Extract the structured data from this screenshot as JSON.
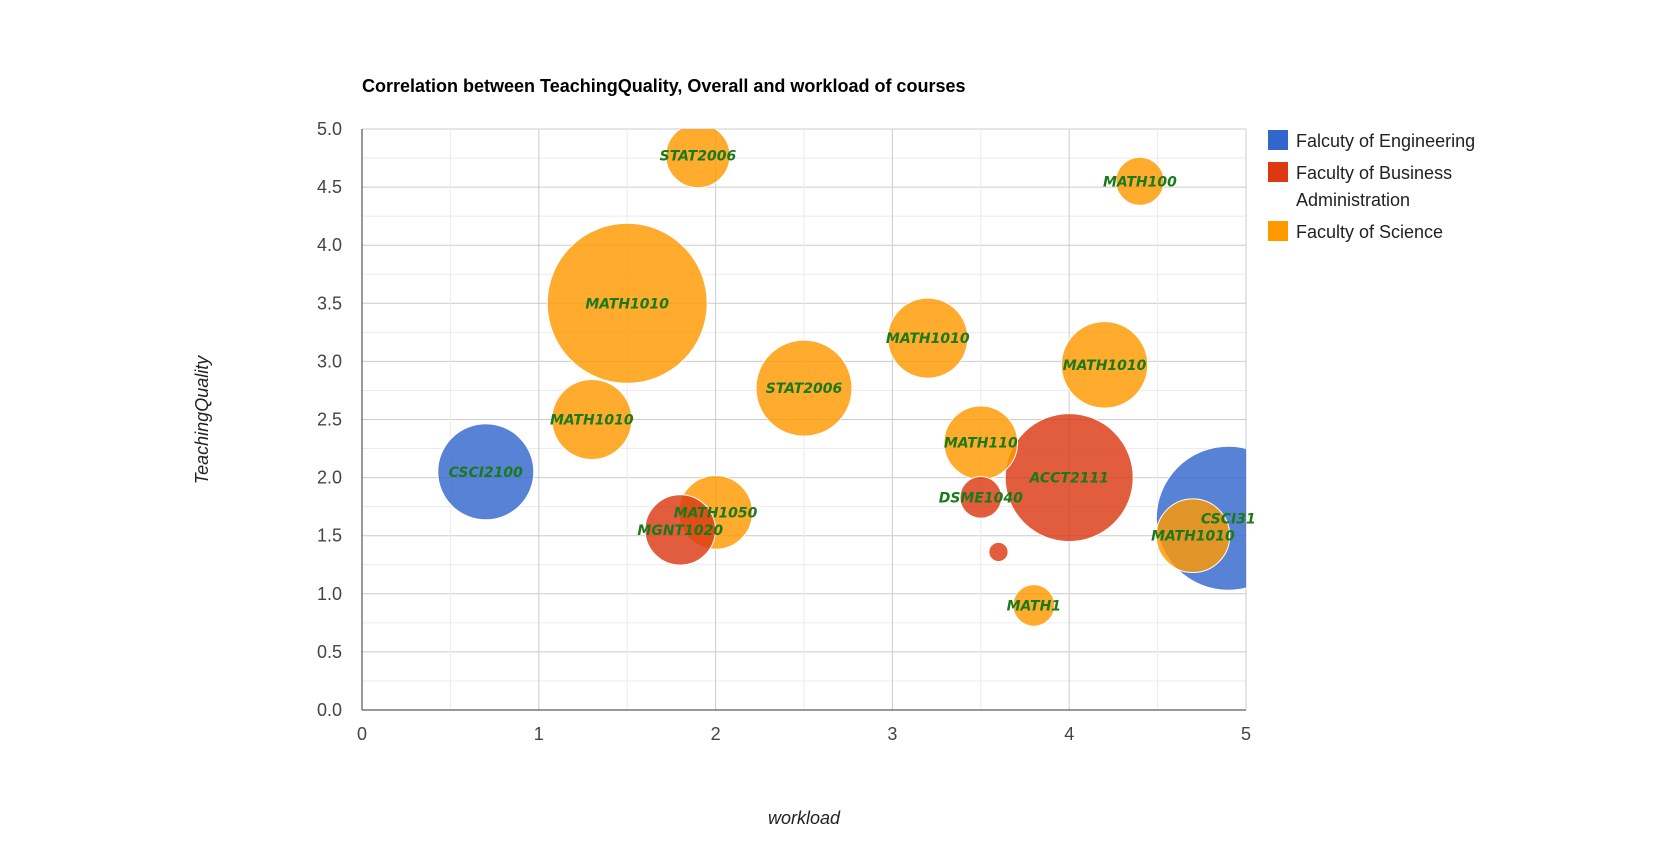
{
  "chart_data": {
    "type": "scatter",
    "subtype": "bubble",
    "title": "Correlation between TeachingQuality, Overall and workload of courses",
    "xlabel": "workload",
    "ylabel": "TeachingQuality",
    "xlim": [
      0,
      5
    ],
    "ylim": [
      0,
      5
    ],
    "x_ticks": [
      "0",
      "1",
      "2",
      "3",
      "4",
      "5"
    ],
    "y_ticks": [
      "0.0",
      "0.5",
      "1.0",
      "1.5",
      "2.0",
      "2.5",
      "3.0",
      "3.5",
      "4.0",
      "4.5",
      "5.0"
    ],
    "grid": true,
    "legend_position": "right",
    "series": [
      {
        "name": "Falcuty of Engineering",
        "color": "#3366cc"
      },
      {
        "name": "Faculty of Business Administration",
        "color": "#dc3912"
      },
      {
        "name": "Faculty of Science",
        "color": "#ff9900"
      }
    ],
    "points": [
      {
        "label": "STAT2006",
        "x": 1.9,
        "y": 4.77,
        "size": 2.0,
        "series": 2
      },
      {
        "label": "MATH100",
        "x": 4.4,
        "y": 4.55,
        "size": 1.5,
        "series": 2
      },
      {
        "label": "MATH1010",
        "x": 1.5,
        "y": 3.5,
        "size": 5.0,
        "series": 2
      },
      {
        "label": "MATH1010",
        "x": 3.2,
        "y": 3.2,
        "size": 2.5,
        "series": 2
      },
      {
        "label": "MATH1010",
        "x": 4.2,
        "y": 2.97,
        "size": 2.7,
        "series": 2
      },
      {
        "label": "STAT2006",
        "x": 2.5,
        "y": 2.77,
        "size": 3.0,
        "series": 2
      },
      {
        "label": "MATH1010",
        "x": 1.3,
        "y": 2.5,
        "size": 2.5,
        "series": 2
      },
      {
        "label": "MATH110",
        "x": 3.5,
        "y": 2.3,
        "size": 2.3,
        "series": 2
      },
      {
        "label": "CSCI2100",
        "x": 0.7,
        "y": 2.05,
        "size": 3.0,
        "series": 0
      },
      {
        "label": "ACCT2111",
        "x": 4.0,
        "y": 2.0,
        "size": 4.0,
        "series": 1
      },
      {
        "label": "DSME1040",
        "x": 3.5,
        "y": 1.83,
        "size": 1.3,
        "series": 1
      },
      {
        "label": "MATH1050",
        "x": 2.0,
        "y": 1.7,
        "size": 2.3,
        "series": 2
      },
      {
        "label": "MGNT1020",
        "x": 1.8,
        "y": 1.55,
        "size": 2.2,
        "series": 1
      },
      {
        "label": "CSCI31",
        "x": 4.9,
        "y": 1.65,
        "size": 4.5,
        "series": 0
      },
      {
        "label": "MATH1010",
        "x": 4.7,
        "y": 1.5,
        "size": 2.3,
        "series": 2
      },
      {
        "label": "",
        "x": 3.6,
        "y": 1.36,
        "size": 0.6,
        "series": 1
      },
      {
        "label": "MATH1",
        "x": 3.8,
        "y": 0.9,
        "size": 1.3,
        "series": 2
      }
    ]
  }
}
